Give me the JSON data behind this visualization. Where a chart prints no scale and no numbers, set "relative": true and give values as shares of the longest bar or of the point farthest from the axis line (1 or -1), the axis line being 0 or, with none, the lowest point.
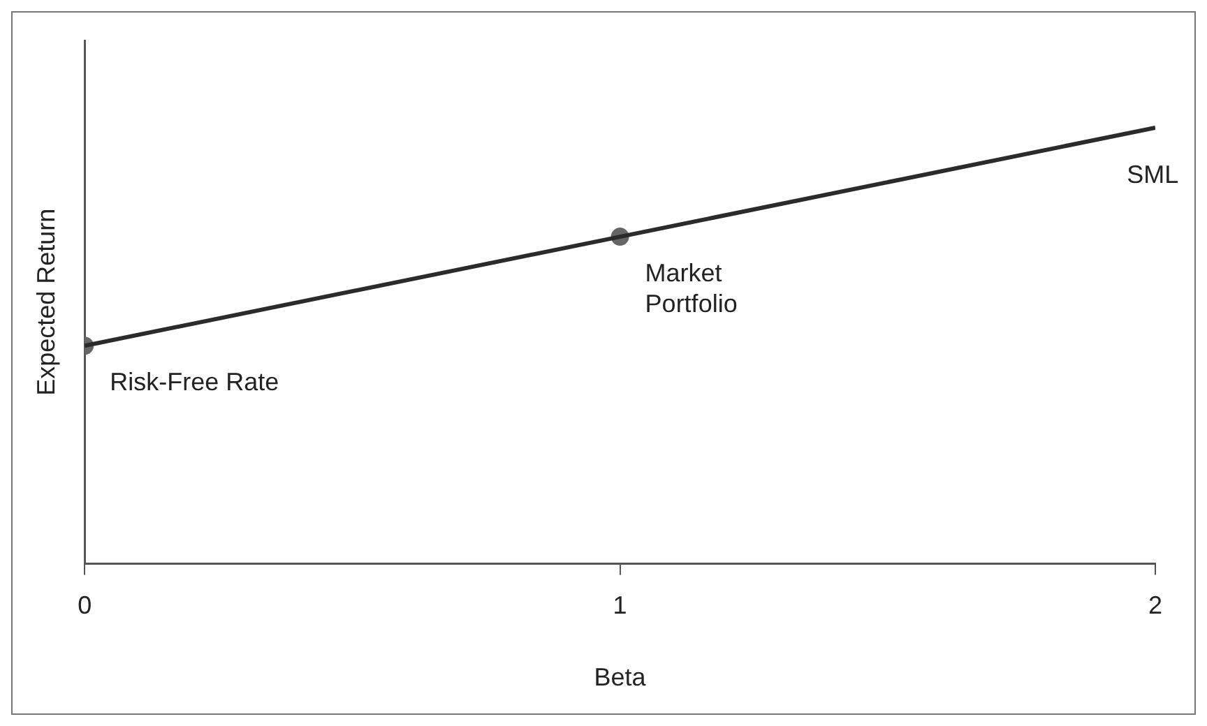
{
  "chart_data": {
    "type": "line",
    "relative": true,
    "xlabel": "Beta",
    "ylabel": "Expected Return",
    "x": [
      0,
      1,
      2
    ],
    "xlim": [
      0,
      2
    ],
    "xticks": [
      0,
      1,
      2
    ],
    "series": [
      {
        "type": "line",
        "color": "#2b2b2b",
        "values": [
          0.5,
          0.75,
          1
        ],
        "marker": "none"
      },
      {
        "type": "scatter",
        "color": "#666666",
        "x": [
          0,
          1
        ],
        "values": [
          0.5,
          0.75
        ],
        "marker": "circle"
      }
    ],
    "annotations": [
      {
        "text": "Risk-Free Rate",
        "x": 0,
        "y": 0.5
      },
      {
        "text": "Market\nPortfolio",
        "x": 1,
        "y": 0.75
      },
      {
        "text": "SML",
        "x": 1.9,
        "y": 0.975
      }
    ],
    "grid": false,
    "legend": false
  }
}
